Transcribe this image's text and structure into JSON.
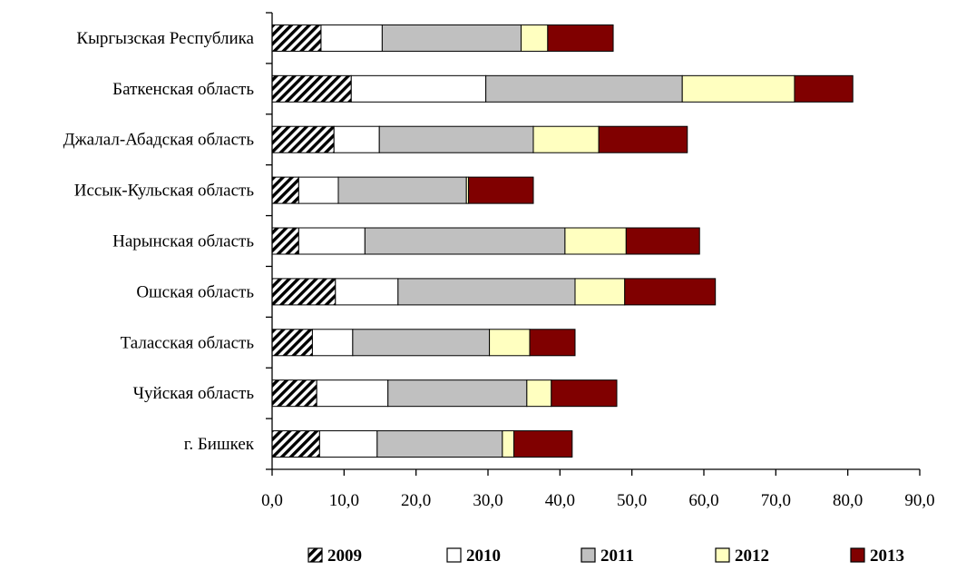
{
  "chart_data": {
    "type": "bar",
    "orientation": "horizontal",
    "stacked": true,
    "categories": [
      "Кыргызская Республика",
      "Баткенская область",
      "Джалал-Абадская  область",
      "Иссык-Кульская  область",
      "Нарынская область",
      "Ошская область",
      "Таласская область",
      "Чуйская область",
      "г. Бишкек"
    ],
    "series": [
      {
        "name": "2009",
        "pattern": "diagonal-hatch",
        "color": "#000000",
        "values": [
          6.8,
          11.0,
          8.6,
          3.7,
          3.7,
          8.8,
          5.6,
          6.2,
          6.6
        ]
      },
      {
        "name": "2010",
        "color": "#ffffff",
        "values": [
          8.5,
          18.7,
          6.3,
          5.5,
          9.2,
          8.7,
          5.6,
          9.9,
          8.0
        ]
      },
      {
        "name": "2011",
        "color": "#c0c0c0",
        "values": [
          19.3,
          27.3,
          21.4,
          17.8,
          27.8,
          24.6,
          19.0,
          19.3,
          17.4
        ]
      },
      {
        "name": "2012",
        "color": "#ffffc0",
        "values": [
          3.7,
          15.6,
          9.1,
          0.3,
          8.5,
          6.9,
          5.6,
          3.4,
          1.6
        ]
      },
      {
        "name": "2013",
        "color": "#800000",
        "values": [
          9.1,
          8.1,
          12.3,
          9.0,
          10.2,
          12.6,
          6.3,
          9.1,
          8.1
        ]
      }
    ],
    "xlim": [
      0,
      90
    ],
    "x_ticks": [
      "0,0",
      "10,0",
      "20,0",
      "30,0",
      "40,0",
      "50,0",
      "60,0",
      "70,0",
      "80,0",
      "90,0"
    ],
    "title": "",
    "xlabel": "",
    "ylabel": "",
    "grid": false,
    "legend_position": "bottom"
  }
}
